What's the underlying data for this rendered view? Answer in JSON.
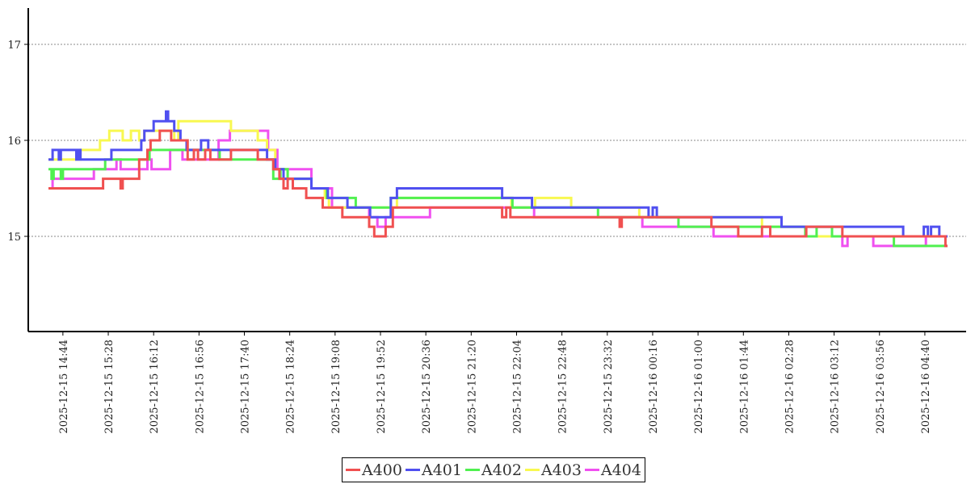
{
  "chart_data": {
    "type": "line",
    "title": "",
    "xlabel": "",
    "ylabel": "",
    "x_unit": "minutes since 2025-12-15 14:30",
    "xlim": [
      0,
      872
    ],
    "ylim": [
      14.0,
      17.38
    ],
    "y_ticks": [
      "15",
      "16",
      "17"
    ],
    "y_tick_values": [
      15,
      16,
      17
    ],
    "grid": "horizontal dotted",
    "x_tick_minutes": [
      14,
      58,
      102,
      146,
      190,
      234,
      278,
      322,
      366,
      410,
      454,
      498,
      542,
      586,
      630,
      674,
      718,
      762,
      806,
      850
    ],
    "x_tick_labels": [
      "2025-12-15 14:44",
      "2025-12-15 15:28",
      "2025-12-15 16:12",
      "2025-12-15 16:56",
      "2025-12-15 17:40",
      "2025-12-15 18:24",
      "2025-12-15 19:08",
      "2025-12-15 19:52",
      "2025-12-15 20:36",
      "2025-12-15 21:20",
      "2025-12-15 22:04",
      "2025-12-15 22:48",
      "2025-12-15 23:32",
      "2025-12-16 00:16",
      "2025-12-16 01:00",
      "2025-12-16 01:44",
      "2025-12-16 02:28",
      "2025-12-16 03:12",
      "2025-12-16 03:56",
      "2025-12-16 04:40"
    ],
    "legend_position": "bottom-center",
    "series": [
      {
        "name": "A400",
        "color": "#f05050",
        "steps": [
          [
            0,
            15.5
          ],
          [
            53,
            15.6
          ],
          [
            70,
            15.5
          ],
          [
            72,
            15.6
          ],
          [
            88,
            15.8
          ],
          [
            96,
            15.9
          ],
          [
            99,
            16.0
          ],
          [
            108,
            16.1
          ],
          [
            119,
            16.0
          ],
          [
            135,
            15.8
          ],
          [
            141,
            15.9
          ],
          [
            145,
            15.8
          ],
          [
            152,
            15.9
          ],
          [
            157,
            15.8
          ],
          [
            177,
            15.9
          ],
          [
            203,
            15.8
          ],
          [
            218,
            15.7
          ],
          [
            224,
            15.6
          ],
          [
            228,
            15.5
          ],
          [
            232,
            15.6
          ],
          [
            237,
            15.5
          ],
          [
            250,
            15.4
          ],
          [
            266,
            15.3
          ],
          [
            285,
            15.2
          ],
          [
            311,
            15.1
          ],
          [
            316,
            15.0
          ],
          [
            327,
            15.1
          ],
          [
            334,
            15.3
          ],
          [
            440,
            15.2
          ],
          [
            444,
            15.3
          ],
          [
            448,
            15.2
          ],
          [
            554,
            15.1
          ],
          [
            556,
            15.2
          ],
          [
            643,
            15.1
          ],
          [
            669,
            15.0
          ],
          [
            692,
            15.1
          ],
          [
            700,
            15.0
          ],
          [
            735,
            15.1
          ],
          [
            770,
            15.0
          ],
          [
            870,
            14.9
          ],
          [
            872,
            14.9
          ]
        ]
      },
      {
        "name": "A401",
        "color": "#5050f0",
        "steps": [
          [
            0,
            15.8
          ],
          [
            4,
            15.9
          ],
          [
            10,
            15.8
          ],
          [
            12,
            15.9
          ],
          [
            27,
            15.8
          ],
          [
            29,
            15.9
          ],
          [
            31,
            15.8
          ],
          [
            61,
            15.9
          ],
          [
            90,
            16.0
          ],
          [
            93,
            16.1
          ],
          [
            102,
            16.2
          ],
          [
            114,
            16.3
          ],
          [
            116,
            16.2
          ],
          [
            122,
            16.1
          ],
          [
            128,
            16.0
          ],
          [
            134,
            15.9
          ],
          [
            148,
            16.0
          ],
          [
            155,
            15.9
          ],
          [
            212,
            15.8
          ],
          [
            220,
            15.7
          ],
          [
            228,
            15.6
          ],
          [
            255,
            15.5
          ],
          [
            271,
            15.4
          ],
          [
            290,
            15.3
          ],
          [
            312,
            15.2
          ],
          [
            332,
            15.4
          ],
          [
            338,
            15.5
          ],
          [
            440,
            15.4
          ],
          [
            469,
            15.3
          ],
          [
            582,
            15.2
          ],
          [
            586,
            15.3
          ],
          [
            590,
            15.2
          ],
          [
            711,
            15.1
          ],
          [
            829,
            15.0
          ],
          [
            849,
            15.1
          ],
          [
            853,
            15.0
          ],
          [
            856,
            15.1
          ],
          [
            864,
            15.0
          ],
          [
            872,
            15.0
          ]
        ]
      },
      {
        "name": "A402",
        "color": "#50f050",
        "steps": [
          [
            0,
            15.7
          ],
          [
            3,
            15.6
          ],
          [
            5,
            15.7
          ],
          [
            12,
            15.6
          ],
          [
            14,
            15.7
          ],
          [
            55,
            15.8
          ],
          [
            98,
            15.9
          ],
          [
            166,
            15.8
          ],
          [
            218,
            15.6
          ],
          [
            225,
            15.7
          ],
          [
            232,
            15.6
          ],
          [
            255,
            15.5
          ],
          [
            270,
            15.4
          ],
          [
            298,
            15.3
          ],
          [
            332,
            15.4
          ],
          [
            450,
            15.3
          ],
          [
            533,
            15.2
          ],
          [
            611,
            15.1
          ],
          [
            734,
            15.0
          ],
          [
            745,
            15.1
          ],
          [
            760,
            15.0
          ],
          [
            820,
            14.9
          ],
          [
            872,
            14.9
          ]
        ]
      },
      {
        "name": "A403",
        "color": "#f8f850",
        "steps": [
          [
            0,
            15.8
          ],
          [
            31,
            15.9
          ],
          [
            50,
            16.0
          ],
          [
            59,
            16.1
          ],
          [
            72,
            16.0
          ],
          [
            80,
            16.1
          ],
          [
            88,
            16.0
          ],
          [
            93,
            16.1
          ],
          [
            122,
            16.0
          ],
          [
            126,
            16.2
          ],
          [
            177,
            16.1
          ],
          [
            203,
            16.0
          ],
          [
            212,
            15.9
          ],
          [
            220,
            15.7
          ],
          [
            232,
            15.6
          ],
          [
            255,
            15.5
          ],
          [
            268,
            15.4
          ],
          [
            272,
            15.3
          ],
          [
            338,
            15.4
          ],
          [
            449,
            15.3
          ],
          [
            472,
            15.4
          ],
          [
            507,
            15.3
          ],
          [
            573,
            15.2
          ],
          [
            692,
            15.1
          ],
          [
            735,
            15.0
          ],
          [
            872,
            15.0
          ]
        ]
      },
      {
        "name": "A404",
        "color": "#f050f0",
        "steps": [
          [
            0,
            15.5
          ],
          [
            4,
            15.6
          ],
          [
            44,
            15.7
          ],
          [
            66,
            15.8
          ],
          [
            70,
            15.7
          ],
          [
            96,
            15.8
          ],
          [
            100,
            15.7
          ],
          [
            118,
            15.9
          ],
          [
            130,
            15.8
          ],
          [
            165,
            16.0
          ],
          [
            176,
            16.1
          ],
          [
            213,
            15.9
          ],
          [
            222,
            15.7
          ],
          [
            255,
            15.5
          ],
          [
            275,
            15.3
          ],
          [
            311,
            15.2
          ],
          [
            319,
            15.1
          ],
          [
            327,
            15.2
          ],
          [
            370,
            15.3
          ],
          [
            471,
            15.2
          ],
          [
            576,
            15.1
          ],
          [
            645,
            15.0
          ],
          [
            770,
            14.9
          ],
          [
            775,
            15.0
          ],
          [
            800,
            14.9
          ],
          [
            815,
            14.9
          ],
          [
            851,
            15.0
          ],
          [
            872,
            15.0
          ]
        ]
      }
    ]
  }
}
